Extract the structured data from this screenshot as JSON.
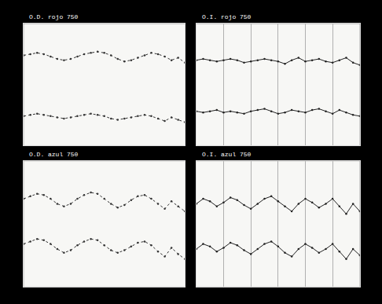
{
  "chart_data": [
    {
      "type": "line",
      "title": "O.D. rojo 750",
      "grid": false,
      "tick_labels": false,
      "xlim": [
        0,
        24
      ],
      "ylim": [
        0,
        100
      ],
      "x": [
        0,
        1,
        2,
        3,
        4,
        5,
        6,
        7,
        8,
        9,
        10,
        11,
        12,
        13,
        14,
        15,
        16,
        17,
        18,
        19,
        20,
        21,
        22,
        23,
        24
      ],
      "series": [
        {
          "color": "#333333",
          "marker": "circle",
          "line_style": "dotted",
          "values": [
            74,
            75,
            76,
            75,
            73,
            71,
            70,
            71,
            73,
            75,
            76,
            77,
            76,
            74,
            71,
            69,
            70,
            72,
            74,
            76,
            75,
            73,
            70,
            72,
            68
          ]
        },
        {
          "color": "#333333",
          "marker": "circle",
          "line_style": "dotted",
          "values": [
            24,
            25,
            26,
            25,
            24,
            23,
            22,
            23,
            24,
            25,
            26,
            25,
            24,
            22,
            21,
            22,
            23,
            24,
            25,
            24,
            22,
            20,
            23,
            21,
            19
          ]
        }
      ]
    },
    {
      "type": "line",
      "title": "O.I. rojo 750",
      "grid": true,
      "tick_labels": false,
      "xlim": [
        0,
        24
      ],
      "ylim": [
        0,
        100
      ],
      "xticks": [
        4,
        8,
        12,
        16,
        20
      ],
      "x": [
        0,
        1,
        2,
        3,
        4,
        5,
        6,
        7,
        8,
        9,
        10,
        11,
        12,
        13,
        14,
        15,
        16,
        17,
        18,
        19,
        20,
        21,
        22,
        23,
        24
      ],
      "series": [
        {
          "color": "#222222",
          "marker": "circle",
          "line_style": "solid",
          "values": [
            70,
            71,
            70,
            69,
            70,
            71,
            70,
            68,
            69,
            70,
            71,
            70,
            69,
            67,
            70,
            72,
            69,
            70,
            71,
            69,
            68,
            70,
            72,
            68,
            66
          ]
        },
        {
          "color": "#222222",
          "marker": "circle",
          "line_style": "solid",
          "values": [
            28,
            27,
            28,
            29,
            27,
            28,
            27,
            26,
            28,
            29,
            30,
            28,
            26,
            27,
            29,
            28,
            27,
            29,
            30,
            28,
            26,
            29,
            27,
            25,
            24
          ]
        }
      ]
    },
    {
      "type": "line",
      "title": "O.D. azul 750",
      "grid": false,
      "tick_labels": false,
      "xlim": [
        0,
        24
      ],
      "ylim": [
        0,
        100
      ],
      "x": [
        0,
        1,
        2,
        3,
        4,
        5,
        6,
        7,
        8,
        9,
        10,
        11,
        12,
        13,
        14,
        15,
        16,
        17,
        18,
        19,
        20,
        21,
        22,
        23,
        24
      ],
      "series": [
        {
          "color": "#333333",
          "marker": "circle",
          "line_style": "dotted",
          "values": [
            70,
            72,
            74,
            73,
            70,
            66,
            64,
            66,
            70,
            73,
            75,
            74,
            70,
            66,
            63,
            65,
            69,
            72,
            73,
            70,
            66,
            62,
            68,
            64,
            60
          ]
        },
        {
          "color": "#333333",
          "marker": "circle",
          "line_style": "dotted",
          "values": [
            34,
            36,
            38,
            37,
            34,
            30,
            27,
            29,
            33,
            36,
            38,
            37,
            33,
            29,
            27,
            29,
            32,
            35,
            36,
            33,
            28,
            24,
            31,
            26,
            22
          ]
        }
      ]
    },
    {
      "type": "line",
      "title": "O.I. azul 750",
      "grid": true,
      "tick_labels": false,
      "xlim": [
        0,
        24
      ],
      "ylim": [
        0,
        100
      ],
      "xticks": [
        4,
        8,
        12,
        16,
        20
      ],
      "x": [
        0,
        1,
        2,
        3,
        4,
        5,
        6,
        7,
        8,
        9,
        10,
        11,
        12,
        13,
        14,
        15,
        16,
        17,
        18,
        19,
        20,
        21,
        22,
        23,
        24
      ],
      "series": [
        {
          "color": "#222222",
          "marker": "circle",
          "line_style": "solid",
          "values": [
            66,
            70,
            68,
            64,
            67,
            71,
            69,
            65,
            62,
            66,
            70,
            72,
            68,
            64,
            60,
            66,
            70,
            67,
            63,
            66,
            70,
            64,
            58,
            66,
            60
          ]
        },
        {
          "color": "#222222",
          "marker": "circle",
          "line_style": "solid",
          "values": [
            30,
            34,
            32,
            28,
            31,
            35,
            33,
            29,
            26,
            30,
            34,
            36,
            32,
            27,
            24,
            30,
            34,
            31,
            27,
            30,
            34,
            28,
            22,
            30,
            25
          ]
        }
      ]
    }
  ]
}
